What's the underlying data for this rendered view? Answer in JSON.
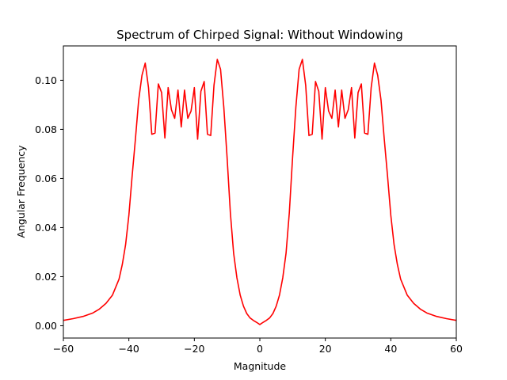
{
  "chart_data": {
    "type": "line",
    "title": "Spectrum of Chirped Signal: Without Windowing",
    "xlabel": "Magnitude",
    "ylabel": "Angular Frequency",
    "xlim": [
      -60,
      60
    ],
    "ylim": [
      -0.005,
      0.114
    ],
    "xticks": [
      -60,
      -40,
      -20,
      0,
      20,
      40,
      60
    ],
    "xtick_labels": [
      "−60",
      "−40",
      "−20",
      "0",
      "20",
      "40",
      "60"
    ],
    "yticks": [
      0.0,
      0.02,
      0.04,
      0.06,
      0.08,
      0.1
    ],
    "ytick_labels": [
      "0.00",
      "0.02",
      "0.04",
      "0.06",
      "0.08",
      "0.10"
    ],
    "grid": false,
    "legend": "none",
    "series": [
      {
        "color": "#ff0000",
        "x": [
          -60,
          -57,
          -54,
          -51,
          -49,
          -47,
          -45,
          -43,
          -42,
          -41,
          -40,
          -39,
          -38,
          -37,
          -36,
          -35,
          -34,
          -33,
          -32,
          -31,
          -30,
          -29,
          -28,
          -27,
          -26,
          -25,
          -24,
          -23,
          -22,
          -21,
          -20,
          -19,
          -18,
          -17,
          -16,
          -15,
          -14,
          -13,
          -12,
          -11,
          -10,
          -9,
          -8,
          -7,
          -6,
          -5,
          -4,
          -3,
          -2,
          -1,
          0,
          1,
          2,
          3,
          4,
          5,
          6,
          7,
          8,
          9,
          10,
          11,
          12,
          13,
          14,
          15,
          16,
          17,
          18,
          19,
          20,
          21,
          22,
          23,
          24,
          25,
          26,
          27,
          28,
          29,
          30,
          31,
          32,
          33,
          34,
          35,
          36,
          37,
          38,
          39,
          40,
          41,
          42,
          43,
          45,
          47,
          49,
          51,
          54,
          57,
          60
        ],
        "y": [
          0.0022,
          0.0029,
          0.0038,
          0.0052,
          0.0068,
          0.0091,
          0.0125,
          0.019,
          0.025,
          0.033,
          0.045,
          0.061,
          0.076,
          0.092,
          0.102,
          0.107,
          0.097,
          0.078,
          0.0785,
          0.0985,
          0.095,
          0.0765,
          0.097,
          0.088,
          0.0845,
          0.096,
          0.081,
          0.096,
          0.0845,
          0.0875,
          0.097,
          0.076,
          0.0955,
          0.0995,
          0.078,
          0.0775,
          0.098,
          0.1085,
          0.1045,
          0.089,
          0.0685,
          0.046,
          0.0295,
          0.0195,
          0.0125,
          0.008,
          0.005,
          0.0032,
          0.0022,
          0.0014,
          0.0005,
          0.0014,
          0.0022,
          0.0032,
          0.005,
          0.008,
          0.0125,
          0.0195,
          0.0295,
          0.046,
          0.0685,
          0.089,
          0.1045,
          0.1085,
          0.098,
          0.0775,
          0.078,
          0.0995,
          0.0955,
          0.076,
          0.097,
          0.0875,
          0.0845,
          0.096,
          0.081,
          0.096,
          0.0845,
          0.088,
          0.097,
          0.0765,
          0.095,
          0.0985,
          0.0785,
          0.078,
          0.097,
          0.107,
          0.102,
          0.092,
          0.076,
          0.061,
          0.045,
          0.033,
          0.025,
          0.019,
          0.0125,
          0.0091,
          0.0068,
          0.0052,
          0.0038,
          0.0029,
          0.0022
        ]
      }
    ]
  }
}
